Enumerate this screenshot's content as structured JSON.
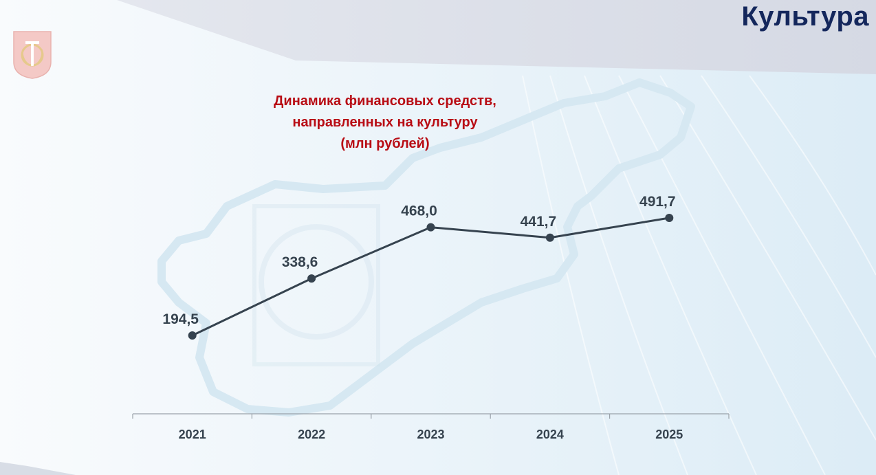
{
  "header": {
    "title": "Культура"
  },
  "colors": {
    "title": "#14275c",
    "chart_title": "#b80c14",
    "line": "#36434f",
    "axis": "#9aa2aa"
  },
  "chart_data": {
    "type": "line",
    "title_lines": [
      "Динамика  финансовых средств,",
      "направленных на культуру",
      "(млн рублей)"
    ],
    "categories": [
      "2021",
      "2022",
      "2023",
      "2024",
      "2025"
    ],
    "series": [
      {
        "values": [
          194.5,
          338.6,
          468.0,
          441.7,
          491.7
        ],
        "labels": [
          "194,5",
          "338,6",
          "468,0",
          "441,7",
          "491,7"
        ]
      }
    ],
    "xlabel": "",
    "ylabel": "",
    "grid": false,
    "legend": "none"
  }
}
